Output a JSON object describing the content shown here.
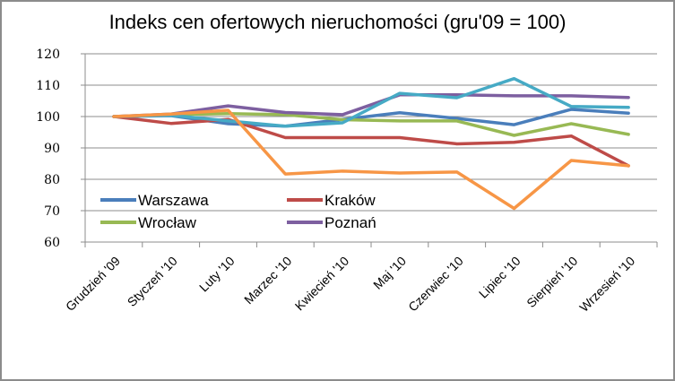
{
  "chart_data": {
    "type": "line",
    "title": "Indeks cen ofertowych nieruchomości (gru'09 = 100)",
    "xlabel": "",
    "ylabel": "",
    "ylim": [
      60,
      120
    ],
    "yticks": [
      60,
      70,
      80,
      90,
      100,
      110,
      120
    ],
    "grid": true,
    "legend_position": "inside-bottom-left",
    "categories": [
      "Grudzień '09",
      "Styczeń '10",
      "Luty '10",
      "Marzec '10",
      "Kwiecień '10",
      "Maj '10",
      "Czerwiec '10",
      "Lipiec '10",
      "Sierpień '10",
      "Wrzesień '10"
    ],
    "series": [
      {
        "name": "Warszawa",
        "color": "#4a7ebb",
        "values": [
          100,
          100.3,
          97.7,
          96.9,
          99.1,
          101.2,
          99.4,
          97.4,
          102.3,
          101.1
        ]
      },
      {
        "name": "Kraków",
        "color": "#be4b48",
        "values": [
          100,
          97.8,
          99.1,
          93.3,
          93.3,
          93.3,
          91.3,
          91.8,
          93.8,
          84.3
        ]
      },
      {
        "name": "Wrocław",
        "color": "#98b954",
        "values": [
          100,
          100.6,
          100.9,
          100.6,
          99.0,
          98.6,
          98.6,
          94.0,
          97.7,
          94.3
        ]
      },
      {
        "name": "Poznań",
        "color": "#7d5fa0",
        "values": [
          100,
          100.8,
          103.4,
          101.3,
          100.6,
          106.9,
          106.9,
          106.6,
          106.6,
          106.1
        ]
      },
      {
        "name": "",
        "color": "#46aac5",
        "values": [
          100,
          100.4,
          98.6,
          96.9,
          98.0,
          107.4,
          106.0,
          112.1,
          103.2,
          102.9
        ]
      },
      {
        "name": "",
        "color": "#f79646",
        "values": [
          100,
          100.8,
          102.0,
          81.7,
          82.6,
          82.0,
          82.3,
          70.7,
          86.0,
          84.3
        ]
      }
    ]
  }
}
